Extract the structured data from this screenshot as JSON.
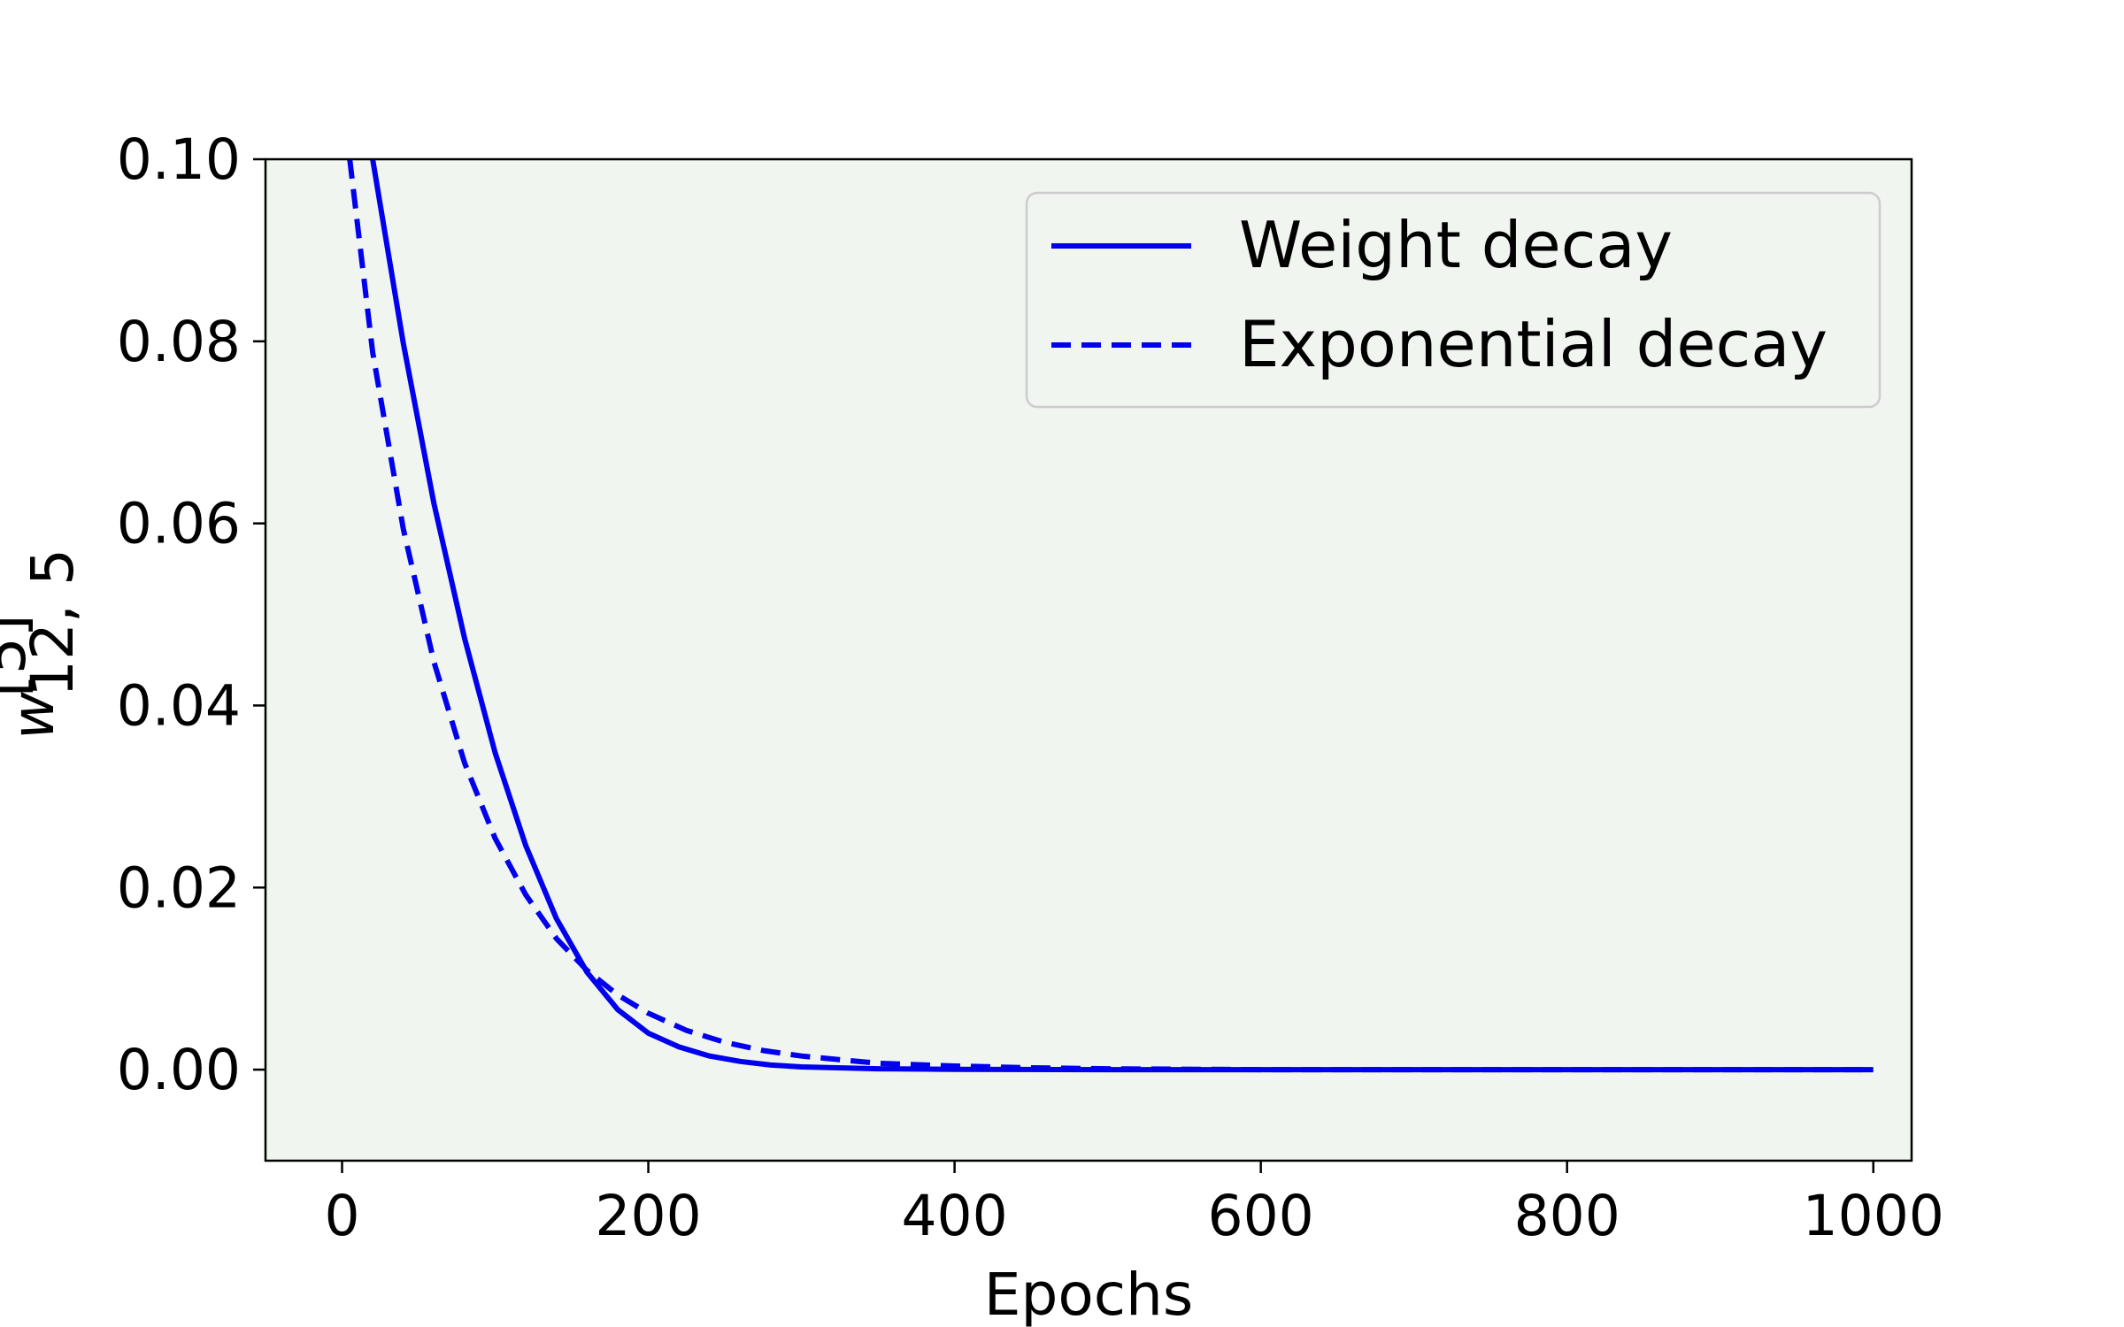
{
  "chart_data": {
    "type": "line",
    "xlabel": "Epochs",
    "ylabel_main": "w",
    "ylabel_superscript": "[5]",
    "ylabel_subscript": "12, 5",
    "xlim": [
      -50,
      1025
    ],
    "ylim": [
      -0.01,
      0.1
    ],
    "xticks": [
      0,
      200,
      400,
      600,
      800,
      1000
    ],
    "yticks": [
      0.0,
      0.02,
      0.04,
      0.06,
      0.08,
      0.1
    ],
    "xtick_labels": [
      "0",
      "200",
      "400",
      "600",
      "800",
      "1000"
    ],
    "ytick_labels": [
      "0.00",
      "0.02",
      "0.04",
      "0.06",
      "0.08",
      "0.10"
    ],
    "plot_background": "#f0f5f0",
    "legend_position": "top-right",
    "series": [
      {
        "name": "Weight decay",
        "style": "solid",
        "color": "#0000ee",
        "x": [
          20,
          40,
          60,
          80,
          100,
          120,
          140,
          160,
          180,
          200,
          220,
          240,
          260,
          280,
          300,
          350,
          400,
          500,
          600,
          700,
          800,
          900,
          1000
        ],
        "y": [
          0.1,
          0.0798,
          0.0622,
          0.0474,
          0.0348,
          0.0246,
          0.0166,
          0.0107,
          0.0066,
          0.004,
          0.0025,
          0.0015,
          0.0009,
          0.0005,
          0.0003,
          0.0001,
          4e-05,
          0.0,
          0.0,
          0.0,
          0.0,
          0.0,
          0.0
        ]
      },
      {
        "name": "Exponential decay",
        "style": "dashed",
        "color": "#0000ee",
        "x": [
          5,
          20,
          40,
          60,
          80,
          100,
          120,
          140,
          160,
          180,
          200,
          225,
          250,
          275,
          300,
          350,
          400,
          450,
          500,
          600,
          700,
          800,
          900,
          1000
        ],
        "y": [
          0.1,
          0.0788,
          0.0594,
          0.0448,
          0.0337,
          0.0254,
          0.0192,
          0.0144,
          0.0109,
          0.0082,
          0.0062,
          0.0043,
          0.003,
          0.0021,
          0.0015,
          0.0007,
          0.0004,
          0.0002,
          0.0001,
          0.0,
          0.0,
          0.0,
          0.0,
          0.0
        ]
      }
    ]
  }
}
